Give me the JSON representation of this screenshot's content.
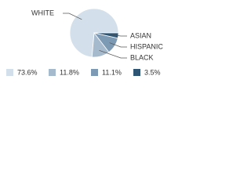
{
  "chart_data": {
    "type": "pie",
    "categories": [
      "WHITE",
      "BLACK",
      "HISPANIC",
      "ASIAN"
    ],
    "values": [
      73.6,
      11.8,
      11.1,
      3.5
    ],
    "value_labels": [
      "73.6%",
      "11.8%",
      "11.1%",
      "3.5%"
    ],
    "colors": [
      "#d3dfea",
      "#a6bacd",
      "#7d9ab4",
      "#2f5575"
    ]
  }
}
